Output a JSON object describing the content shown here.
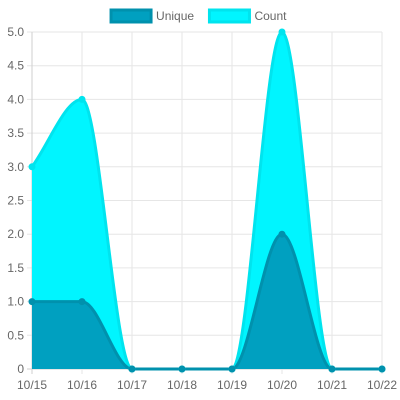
{
  "chart_data": {
    "type": "area",
    "x": [
      "10/15",
      "10/16",
      "10/17",
      "10/18",
      "10/19",
      "10/20",
      "10/21",
      "10/22"
    ],
    "ylim": [
      0,
      5
    ],
    "yticks": [
      "0",
      "0.5",
      "1.0",
      "1.5",
      "2.0",
      "2.5",
      "3.0",
      "3.5",
      "4.0",
      "4.5",
      "5.0"
    ],
    "grid": true,
    "legend_position": "top",
    "series": [
      {
        "name": "Unique",
        "values": [
          1,
          1,
          0,
          0,
          0,
          2,
          0,
          0
        ],
        "fill": "#00a0c0",
        "line": "#0091ad"
      },
      {
        "name": "Count",
        "values": [
          3,
          4,
          0,
          0,
          0,
          5,
          0,
          0
        ],
        "fill": "#00f5ff",
        "line": "#00e4ee"
      }
    ]
  }
}
